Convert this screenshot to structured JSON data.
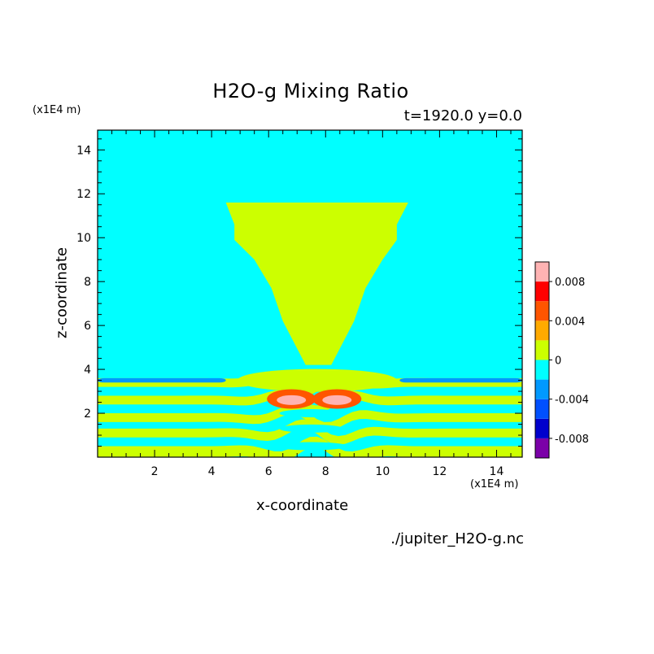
{
  "chart_data": {
    "type": "contour",
    "title": "H2O-g Mixing Ratio",
    "subtitle": "t=1920.0 y=0.0",
    "xlabel": "x-coordinate",
    "ylabel": "z-coordinate",
    "x_unit": "(x1E4 m)",
    "y_unit": "(x1E4 m)",
    "xlim": [
      0,
      14.9
    ],
    "ylim": [
      0,
      14.9
    ],
    "x_ticks": [
      2,
      4,
      6,
      8,
      10,
      12,
      14
    ],
    "y_ticks": [
      2,
      4,
      6,
      8,
      10,
      12,
      14
    ],
    "colorbar": {
      "levels": [
        -0.01,
        -0.008,
        -0.006,
        -0.004,
        -0.002,
        0,
        0.002,
        0.004,
        0.006,
        0.008,
        0.01
      ],
      "tick_labels": [
        "-0.008",
        "-0.004",
        "0",
        "0.004",
        "0.008"
      ],
      "tick_values": [
        -0.008,
        -0.004,
        0,
        0.004,
        0.008
      ],
      "colors": [
        "#7b00a8",
        "#0000cc",
        "#0050ff",
        "#0099ff",
        "#00ffff",
        "#ccff00",
        "#ffaa00",
        "#ff5500",
        "#ff0000",
        "#ffb3b3"
      ]
    },
    "background_value": -0.001,
    "plume_value": 0.001,
    "plume_outline": [
      [
        4.5,
        11.6
      ],
      [
        10.9,
        11.6
      ],
      [
        10.5,
        10.6
      ],
      [
        10.5,
        9.9
      ],
      [
        10.0,
        9.0
      ],
      [
        9.4,
        7.7
      ],
      [
        9.0,
        6.2
      ],
      [
        8.2,
        4.2
      ],
      [
        7.3,
        4.2
      ],
      [
        6.5,
        6.2
      ],
      [
        6.1,
        7.7
      ],
      [
        5.5,
        9.0
      ],
      [
        4.8,
        9.9
      ],
      [
        4.8,
        10.6
      ]
    ],
    "layers_positive": [
      [
        0.0,
        0.5
      ],
      [
        0.9,
        1.3
      ],
      [
        1.6,
        2.0
      ],
      [
        2.4,
        2.8
      ],
      [
        3.2,
        3.6
      ]
    ],
    "layers_negative_strip": [
      [
        0.0,
        4.5,
        3.4,
        3.6
      ],
      [
        10.6,
        14.9,
        3.4,
        3.6
      ]
    ],
    "hot_spots": [
      {
        "x": 6.8,
        "z": 2.65,
        "level": 0.004
      },
      {
        "x": 8.4,
        "z": 2.65,
        "level": 0.004
      },
      {
        "x": 6.8,
        "z": 2.6,
        "level": 0.008
      },
      {
        "x": 8.4,
        "z": 2.6,
        "level": 0.008
      }
    ]
  },
  "footer": {
    "filename": "./jupiter_H2O-g.nc"
  }
}
